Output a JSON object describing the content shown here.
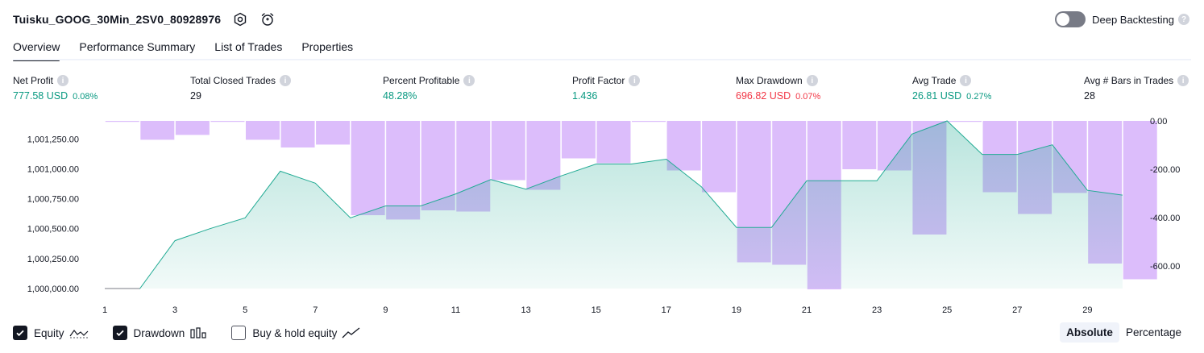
{
  "header": {
    "strategy_name": "Tuisku_GOOG_30Min_2SV0_80928976",
    "settings_icon": "settings-hexagon-icon",
    "alert_icon": "add-alarm-icon"
  },
  "deep_backtesting": {
    "label": "Deep Backtesting",
    "enabled": false,
    "help": "?"
  },
  "tabs": [
    {
      "label": "Overview",
      "active": true
    },
    {
      "label": "Performance Summary",
      "active": false
    },
    {
      "label": "List of Trades",
      "active": false
    },
    {
      "label": "Properties",
      "active": false
    }
  ],
  "metrics": [
    {
      "title": "Net Profit",
      "value": "777.58 USD",
      "percent": "0.08%",
      "color": "green"
    },
    {
      "title": "Total Closed Trades",
      "value": "29",
      "percent": "",
      "color": "dark"
    },
    {
      "title": "Percent Profitable",
      "value": "48.28%",
      "percent": "",
      "color": "green"
    },
    {
      "title": "Profit Factor",
      "value": "1.436",
      "percent": "",
      "color": "green"
    },
    {
      "title": "Max Drawdown",
      "value": "696.82 USD",
      "percent": "0.07%",
      "color": "red"
    },
    {
      "title": "Avg Trade",
      "value": "26.81 USD",
      "percent": "0.27%",
      "color": "green"
    },
    {
      "title": "Avg # Bars in Trades",
      "value": "28",
      "percent": "",
      "color": "dark"
    }
  ],
  "legend": {
    "equity": {
      "label": "Equity",
      "checked": true
    },
    "drawdown": {
      "label": "Drawdown",
      "checked": true
    },
    "buy_hold": {
      "label": "Buy & hold equity",
      "checked": false
    }
  },
  "modes": {
    "absolute": "Absolute",
    "percentage": "Percentage",
    "active": "absolute"
  },
  "colors": {
    "equity_line": "#22ab94",
    "drawdown_bar": "#dcbdfb",
    "profit": "#089981",
    "loss": "#f23645"
  },
  "chart_data": {
    "type": "area",
    "x": [
      1,
      2,
      3,
      4,
      5,
      6,
      7,
      8,
      9,
      10,
      11,
      12,
      13,
      14,
      15,
      16,
      17,
      18,
      19,
      20,
      21,
      22,
      23,
      24,
      25,
      26,
      27,
      28,
      29,
      30
    ],
    "x_tick_labels": [
      "1",
      "3",
      "5",
      "7",
      "9",
      "11",
      "13",
      "15",
      "17",
      "19",
      "21",
      "23",
      "25",
      "27",
      "29"
    ],
    "series": [
      {
        "name": "Equity",
        "axis": "left",
        "values": [
          1000000,
          1000000,
          1000400,
          1000500,
          1000590,
          1000980,
          1000880,
          1000590,
          1000690,
          1000690,
          1000790,
          1000910,
          1000830,
          1000940,
          1001040,
          1001040,
          1001080,
          1000850,
          1000510,
          1000510,
          1000900,
          1000900,
          1000900,
          1001290,
          1001400,
          1001120,
          1001120,
          1001200,
          1000820,
          1000780
        ]
      },
      {
        "name": "Drawdown",
        "axis": "right",
        "values": [
          0,
          -78,
          -58,
          0,
          -78,
          -110,
          -98,
          -390,
          -408,
          -370,
          -375,
          -245,
          -285,
          -155,
          -175,
          0,
          -205,
          -295,
          -585,
          -595,
          -696.82,
          -200,
          -205,
          -470,
          0,
          -295,
          -385,
          -298,
          -590,
          -655
        ]
      }
    ],
    "left_axis": {
      "ticks": [
        "1,000,000.00",
        "1,000,250.00",
        "1,000,500.00",
        "1,000,750.00",
        "1,001,000.00",
        "1,001,250.00"
      ],
      "ylim": [
        1000000,
        1001400
      ]
    },
    "right_axis": {
      "ticks": [
        "0.00",
        "-200.00",
        "-400.00",
        "-600.00"
      ],
      "ylim": [
        -700,
        0
      ]
    },
    "grid": false
  }
}
